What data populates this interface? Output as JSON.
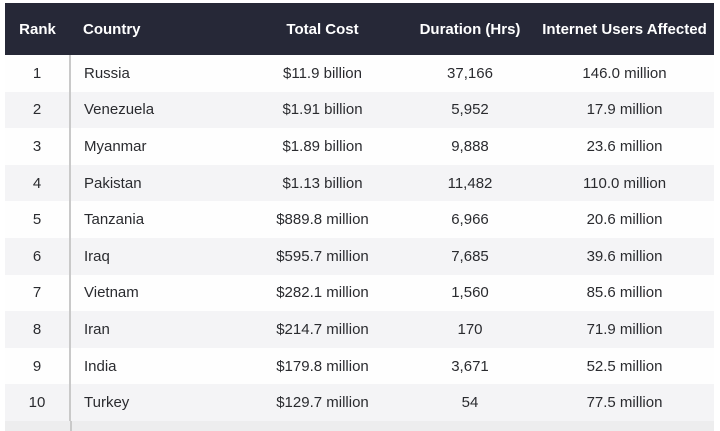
{
  "chart_data": {
    "type": "table",
    "columns": [
      "Rank",
      "Country",
      "Total Cost",
      "Duration (Hrs)",
      "Internet Users Affected"
    ],
    "rows": [
      {
        "rank": "1",
        "country": "Russia",
        "total_cost": "$11.9 billion",
        "duration_hrs": "37,166",
        "users_affected": "146.0 million"
      },
      {
        "rank": "2",
        "country": "Venezuela",
        "total_cost": "$1.91 billion",
        "duration_hrs": "5,952",
        "users_affected": "17.9 million"
      },
      {
        "rank": "3",
        "country": "Myanmar",
        "total_cost": "$1.89 billion",
        "duration_hrs": "9,888",
        "users_affected": "23.6 million"
      },
      {
        "rank": "4",
        "country": "Pakistan",
        "total_cost": "$1.13 billion",
        "duration_hrs": "11,482",
        "users_affected": "110.0 million"
      },
      {
        "rank": "5",
        "country": "Tanzania",
        "total_cost": "$889.8 million",
        "duration_hrs": "6,966",
        "users_affected": "20.6 million"
      },
      {
        "rank": "6",
        "country": "Iraq",
        "total_cost": "$595.7 million",
        "duration_hrs": "7,685",
        "users_affected": "39.6 million"
      },
      {
        "rank": "7",
        "country": "Vietnam",
        "total_cost": "$282.1 million",
        "duration_hrs": "1,560",
        "users_affected": "85.6 million"
      },
      {
        "rank": "8",
        "country": "Iran",
        "total_cost": "$214.7 million",
        "duration_hrs": "170",
        "users_affected": "71.9 million"
      },
      {
        "rank": "9",
        "country": "India",
        "total_cost": "$179.8 million",
        "duration_hrs": "3,671",
        "users_affected": "52.5 million"
      },
      {
        "rank": "10",
        "country": "Turkey",
        "total_cost": "$129.7 million",
        "duration_hrs": "54",
        "users_affected": "77.5 million"
      }
    ],
    "layout": {
      "header_style": "dark bar, white bold text",
      "zebra_striping": true,
      "rank_column_divider": true
    }
  },
  "header": {
    "rank": "Rank",
    "country": "Country",
    "total_cost": "Total Cost",
    "duration": "Duration (Hrs)",
    "users": "Internet Users Affected"
  },
  "colors": {
    "header_bg": "#262837",
    "header_text": "#ffffff",
    "row_white": "#fefefe",
    "row_stripe": "#f4f4f6",
    "bottom_strip": "#ededee",
    "body_text": "#2a2b2f",
    "divider": "#c9c9c9"
  }
}
